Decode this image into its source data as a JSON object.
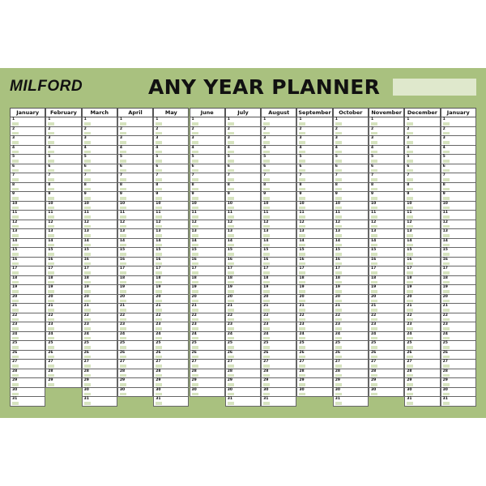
{
  "brand": "MILFORD",
  "title": "ANY YEAR PLANNER",
  "colors": {
    "band": "#a9c17f",
    "year_box": "#dfe8cc",
    "day_swatch": "#d6e3bf"
  },
  "months": [
    {
      "name": "January",
      "days": 31
    },
    {
      "name": "February",
      "days": 29
    },
    {
      "name": "March",
      "days": 31
    },
    {
      "name": "April",
      "days": 30
    },
    {
      "name": "May",
      "days": 31
    },
    {
      "name": "June",
      "days": 30
    },
    {
      "name": "July",
      "days": 31
    },
    {
      "name": "August",
      "days": 31
    },
    {
      "name": "September",
      "days": 30
    },
    {
      "name": "October",
      "days": 31
    },
    {
      "name": "November",
      "days": 30
    },
    {
      "name": "December",
      "days": 31
    },
    {
      "name": "January",
      "days": 31
    }
  ]
}
